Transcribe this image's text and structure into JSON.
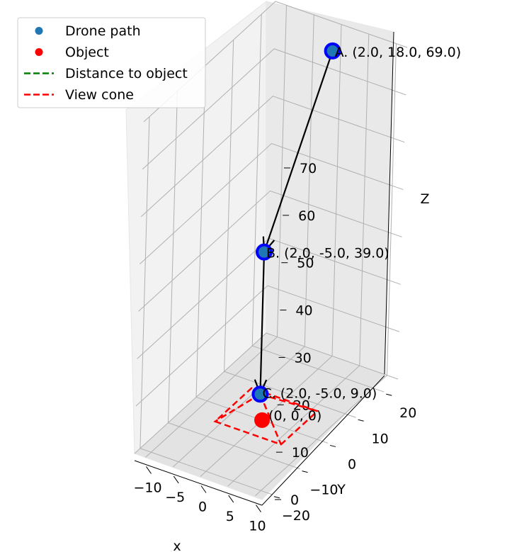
{
  "chart_data": {
    "type": "scatter",
    "projection": "3d",
    "axes": {
      "x": {
        "label": "x",
        "ticks": [
          "−10",
          "−5",
          "0",
          "5",
          "10"
        ]
      },
      "y": {
        "label": "Y",
        "ticks": [
          "−20",
          "−10",
          "0",
          "10",
          "20"
        ]
      },
      "z": {
        "label": "Z",
        "ticks": [
          "0",
          "10",
          "20",
          "30",
          "40",
          "50",
          "60",
          "70"
        ]
      }
    },
    "grid": true,
    "legend": {
      "placement": "top-left",
      "entries": [
        {
          "label": "Drone path",
          "marker": "dot",
          "color": "#1f77b4"
        },
        {
          "label": "Object",
          "marker": "dot",
          "color": "#ff0000"
        },
        {
          "label": "Distance to object",
          "marker": "dashed-line",
          "color": "#008000"
        },
        {
          "label": "View cone",
          "marker": "dashed-line",
          "color": "#ff0000"
        }
      ]
    },
    "series": [
      {
        "name": "Drone path",
        "color": "#1f77b4",
        "points": [
          {
            "x": 2.0,
            "y": 18.0,
            "z": 69.0,
            "label": "A. (2.0, 18.0, 69.0)"
          },
          {
            "x": 2.0,
            "y": -5.0,
            "z": 39.0,
            "label": "B. (2.0, -5.0, 39.0)"
          },
          {
            "x": 2.0,
            "y": -5.0,
            "z": 9.0,
            "label": "C. (2.0, -5.0, 9.0)"
          }
        ]
      },
      {
        "name": "Object",
        "color": "#ff0000",
        "points": [
          {
            "x": 0,
            "y": 0,
            "z": 0,
            "label": "(0, 0, 0)"
          }
        ]
      }
    ],
    "arrows": [
      {
        "from": "A",
        "to": "B",
        "color": "#000000"
      },
      {
        "from": "B",
        "to": "C",
        "color": "#000000"
      }
    ],
    "view_cone": {
      "apex": "C",
      "color": "#ff0000",
      "style": "dashed"
    }
  }
}
